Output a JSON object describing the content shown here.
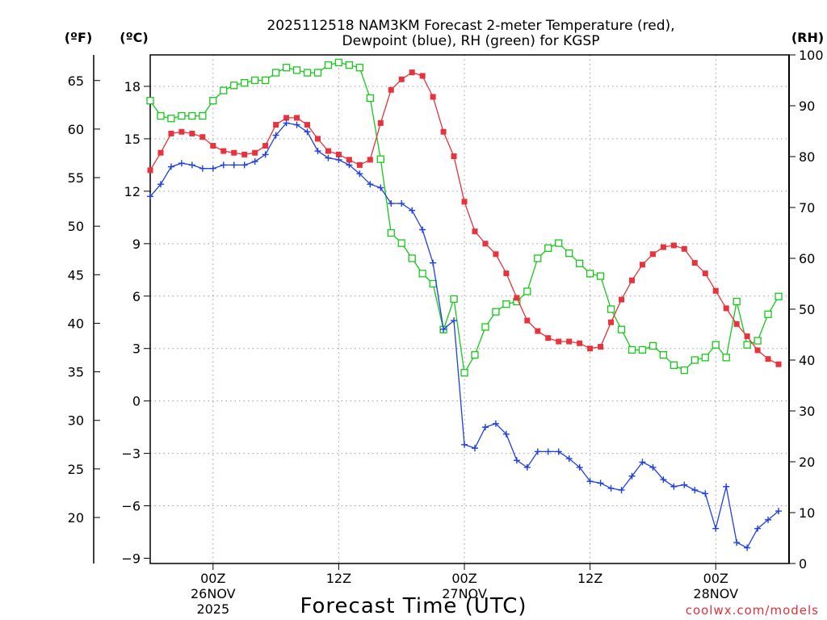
{
  "chart_data": {
    "type": "line",
    "title_line1": "2025112518 NAM3KM Forecast 2-meter Temperature (red),",
    "title_line2": "Dewpoint (blue), RH (green) for KGSP",
    "xlabel": "Forecast Time (UTC)",
    "credit": "coolwx.com/models",
    "unit_f": "(ºF)",
    "unit_c": "(ºC)",
    "unit_rh": "(RH)",
    "x_range_hours": [
      0,
      61
    ],
    "y_c_range": [
      -9.3,
      19.8
    ],
    "y_f_ticks": [
      "20",
      "25",
      "30",
      "35",
      "40",
      "45",
      "50",
      "55",
      "60",
      "65"
    ],
    "y_c_ticks": [
      "−9",
      "−6",
      "−3",
      "0",
      "3",
      "6",
      "9",
      "12",
      "15",
      "18"
    ],
    "y_rh_ticks": [
      "0",
      "10",
      "20",
      "30",
      "40",
      "50",
      "60",
      "70",
      "80",
      "90",
      "100"
    ],
    "x_ticks": [
      {
        "hour": 6,
        "l1": "00Z",
        "l2": "26NOV",
        "l3": "2025"
      },
      {
        "hour": 18,
        "l1": "12Z",
        "l2": "",
        "l3": ""
      },
      {
        "hour": 30,
        "l1": "00Z",
        "l2": "27NOV",
        "l3": ""
      },
      {
        "hour": 42,
        "l1": "12Z",
        "l2": "",
        "l3": ""
      },
      {
        "hour": 54,
        "l1": "00Z",
        "l2": "28NOV",
        "l3": ""
      }
    ],
    "series": [
      {
        "name": "Temperature",
        "color": "#e8323c",
        "values": [
          13.2,
          14.2,
          15.3,
          15.4,
          15.3,
          15.1,
          14.6,
          14.3,
          14.2,
          14.1,
          14.2,
          14.6,
          15.8,
          16.2,
          16.2,
          15.8,
          15.0,
          14.3,
          14.1,
          13.8,
          13.5,
          13.8,
          15.9,
          17.8,
          18.4,
          18.8,
          18.6,
          17.4,
          15.4,
          14.0,
          11.4,
          9.7,
          9.0,
          8.4,
          7.3,
          5.9,
          4.6,
          4.0,
          3.6,
          3.4,
          3.4,
          3.3,
          3.0,
          3.1,
          4.5,
          5.8,
          6.9,
          7.8,
          8.4,
          8.8,
          8.9,
          8.7,
          7.9,
          7.3,
          6.3,
          5.3,
          4.4,
          3.7,
          2.9,
          2.4,
          2.1
        ]
      },
      {
        "name": "Dewpoint",
        "color": "#1f3fe0",
        "values": [
          11.7,
          12.4,
          13.4,
          13.6,
          13.5,
          13.3,
          13.3,
          13.5,
          13.5,
          13.5,
          13.7,
          14.1,
          15.2,
          15.9,
          15.8,
          15.4,
          14.3,
          13.9,
          13.8,
          13.5,
          13.0,
          12.4,
          12.2,
          11.3,
          11.3,
          10.9,
          9.8,
          7.9,
          4.1,
          4.6,
          -2.5,
          -2.7,
          -1.5,
          -1.3,
          -1.9,
          -3.4,
          -3.8,
          -2.9,
          -2.9,
          -2.9,
          -3.3,
          -3.8,
          -4.6,
          -4.7,
          -5.0,
          -5.1,
          -4.3,
          -3.5,
          -3.8,
          -4.5,
          -4.9,
          -4.8,
          -5.1,
          -5.3,
          -7.3,
          -4.9,
          -8.1,
          -8.4,
          -7.3,
          -6.8,
          -6.3
        ]
      },
      {
        "name": "RH",
        "color": "#16c81a",
        "values": [
          91,
          88,
          87.5,
          88,
          88,
          88,
          91,
          93,
          94,
          94.5,
          95,
          95,
          96.5,
          97.5,
          97,
          96.5,
          96.5,
          98,
          98.5,
          98,
          97.5,
          91.5,
          79.5,
          65,
          63,
          60,
          57,
          55,
          46,
          52,
          37.5,
          41,
          46.5,
          49.5,
          51,
          51.5,
          53.5,
          60,
          62,
          63,
          61,
          59,
          57,
          56.5,
          50,
          46,
          42,
          42,
          42.8,
          41,
          39,
          38,
          40,
          40.5,
          43,
          40.5,
          51.5,
          43,
          43.8,
          49,
          52.5
        ]
      }
    ]
  }
}
